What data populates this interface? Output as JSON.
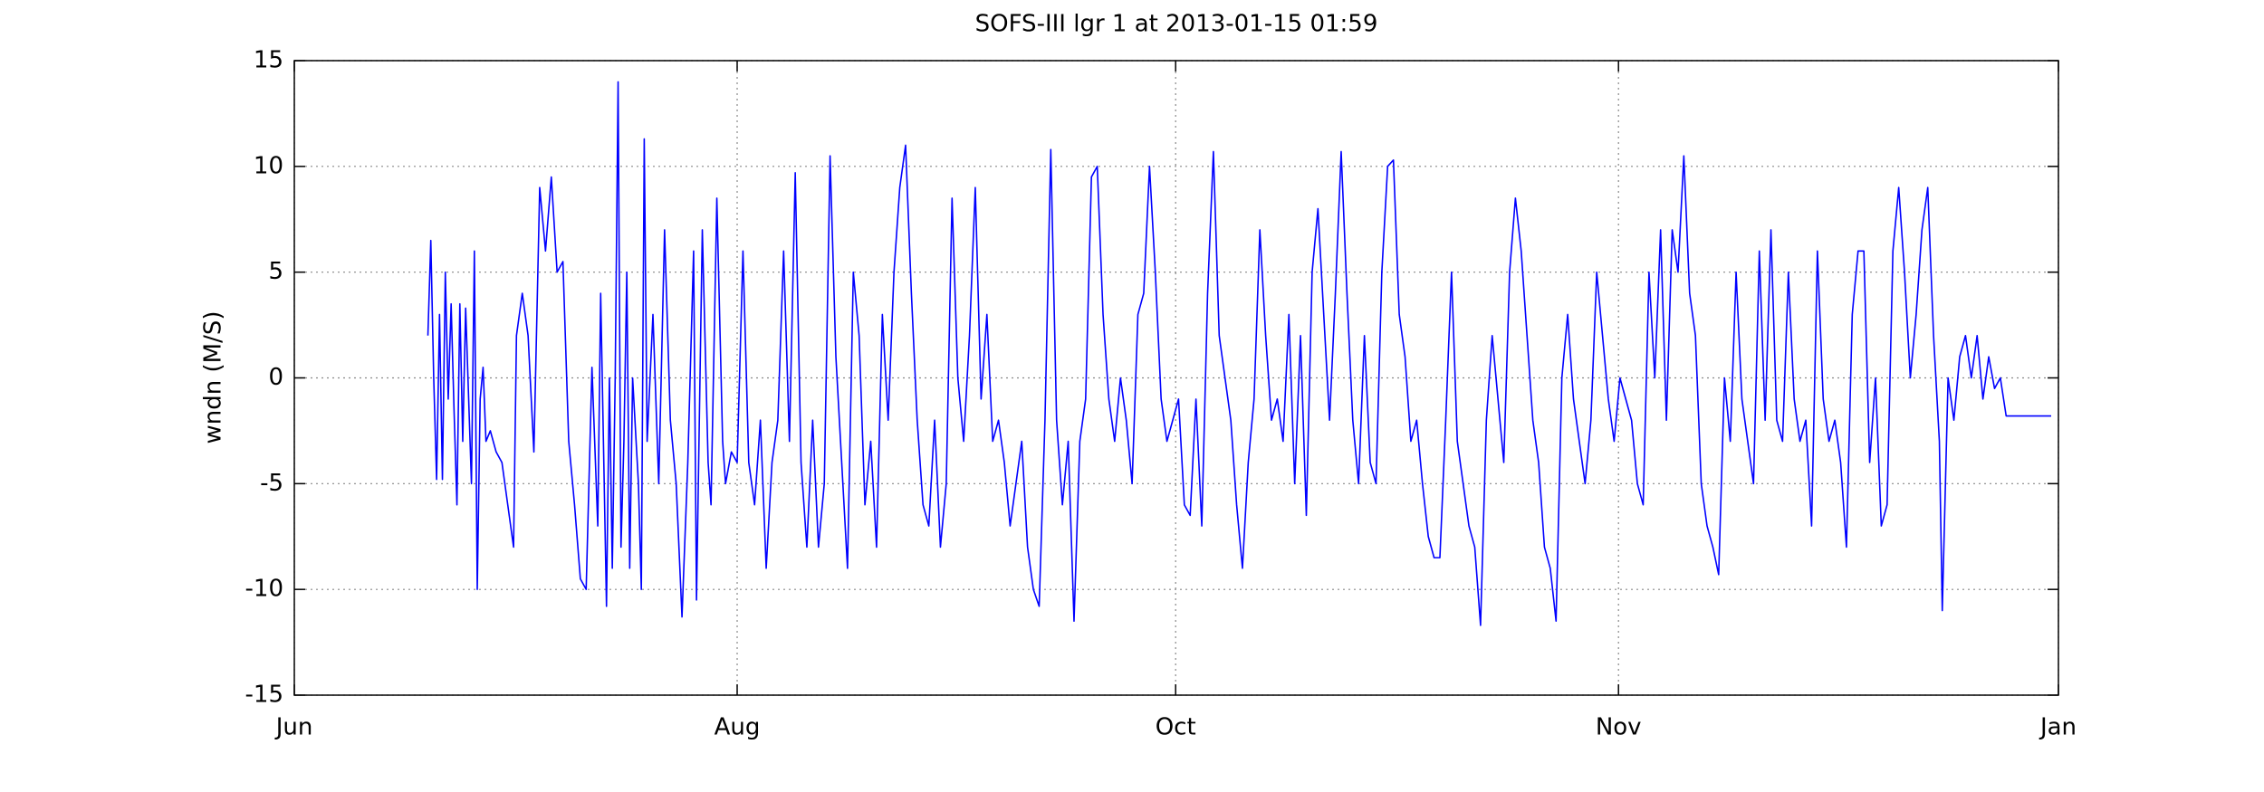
{
  "chart_data": {
    "type": "line",
    "title": "SOFS-III lgr 1 at 2013-01-15 01:59",
    "y_label": "wndn (M/S)",
    "color": "#0000ff",
    "grid": true,
    "xlim": [
      0,
      1215
    ],
    "xticks": [
      {
        "value": 0,
        "label": "Jun"
      },
      {
        "value": 305,
        "label": "Aug"
      },
      {
        "value": 607,
        "label": "Oct"
      },
      {
        "value": 912,
        "label": "Nov"
      },
      {
        "value": 1215,
        "label": "Jan"
      }
    ],
    "ylim": [
      -15,
      15
    ],
    "yticks": [
      -15,
      -10,
      -5,
      0,
      5,
      10,
      15
    ],
    "x": [
      92,
      94,
      96,
      98,
      100,
      102,
      104,
      106,
      108,
      110,
      112,
      114,
      116,
      118,
      122,
      124,
      126,
      128,
      130,
      132,
      135,
      139,
      143,
      147,
      151,
      153,
      157,
      161,
      165,
      169,
      173,
      177,
      181,
      185,
      189,
      193,
      197,
      201,
      205,
      209,
      211,
      215,
      217,
      219,
      221,
      223,
      225,
      227,
      229,
      231,
      233,
      237,
      239,
      241,
      243,
      247,
      251,
      255,
      259,
      263,
      267,
      271,
      275,
      277,
      281,
      285,
      287,
      291,
      295,
      297,
      301,
      305,
      309,
      313,
      317,
      321,
      325,
      329,
      333,
      337,
      341,
      345,
      349,
      353,
      357,
      361,
      365,
      369,
      373,
      377,
      381,
      385,
      389,
      393,
      397,
      401,
      405,
      409,
      413,
      417,
      421,
      425,
      429,
      433,
      437,
      441,
      445,
      449,
      453,
      457,
      461,
      465,
      469,
      473,
      477,
      481,
      485,
      489,
      493,
      497,
      501,
      505,
      509,
      513,
      517,
      521,
      525,
      529,
      533,
      537,
      541,
      545,
      549,
      553,
      557,
      561,
      565,
      569,
      573,
      577,
      581,
      585,
      589,
      593,
      597,
      601,
      605,
      609,
      613,
      617,
      621,
      625,
      629,
      633,
      637,
      641,
      645,
      649,
      653,
      657,
      661,
      665,
      669,
      673,
      677,
      681,
      685,
      689,
      693,
      697,
      701,
      705,
      709,
      713,
      717,
      721,
      725,
      729,
      733,
      737,
      741,
      745,
      749,
      753,
      757,
      761,
      765,
      769,
      773,
      777,
      781,
      785,
      789,
      793,
      797,
      801,
      805,
      809,
      813,
      817,
      821,
      825,
      829,
      833,
      837,
      841,
      845,
      849,
      853,
      857,
      861,
      865,
      869,
      873,
      877,
      881,
      885,
      889,
      893,
      897,
      901,
      905,
      909,
      913,
      917,
      921,
      925,
      929,
      933,
      937,
      941,
      945,
      949,
      953,
      957,
      961,
      965,
      969,
      973,
      977,
      981,
      985,
      989,
      993,
      997,
      1001,
      1005,
      1009,
      1013,
      1017,
      1021,
      1025,
      1029,
      1033,
      1037,
      1041,
      1045,
      1049,
      1053,
      1057,
      1061,
      1065,
      1069,
      1073,
      1077,
      1081,
      1085,
      1089,
      1093,
      1097,
      1101,
      1105,
      1109,
      1113,
      1117,
      1121,
      1125,
      1129,
      1133,
      1135,
      1139,
      1143,
      1147,
      1151,
      1155,
      1159,
      1163,
      1167,
      1171,
      1175,
      1179,
      1210
    ],
    "values": [
      2,
      6.5,
      0,
      -4.8,
      3,
      -4.8,
      5,
      -1,
      3.5,
      -1.5,
      -6,
      3.5,
      -3,
      3.3,
      -5,
      6,
      -10,
      -1,
      0.5,
      -3,
      -2.5,
      -3.5,
      -4,
      -6,
      -8,
      2,
      4,
      2,
      -3.5,
      9,
      6,
      9.5,
      5,
      5.5,
      -3,
      -6,
      -9.5,
      -10,
      0.5,
      -7,
      4,
      -10.8,
      0,
      -9,
      0,
      14,
      -8,
      -3,
      5,
      -9,
      0,
      -5,
      -10,
      11.3,
      -3,
      3,
      -5,
      7,
      -2,
      -5,
      -11.3,
      -4,
      6,
      -10.5,
      7,
      -4,
      -6,
      8.5,
      -3,
      -5,
      -3.5,
      -4,
      6,
      -4,
      -6,
      -2,
      -9,
      -4,
      -2,
      6,
      -3,
      9.7,
      -4,
      -8,
      -2,
      -8,
      -5,
      10.5,
      1,
      -4,
      -9,
      5,
      2,
      -6,
      -3,
      -8,
      3,
      -2,
      5,
      9,
      11,
      4,
      -2,
      -6,
      -7,
      -2,
      -8,
      -5,
      8.5,
      0,
      -3,
      2,
      9,
      -1,
      3,
      -3,
      -2,
      -4,
      -7,
      -5,
      -3,
      -8,
      -10,
      -10.8,
      -2,
      10.8,
      -2,
      -6,
      -3,
      -11.5,
      -3,
      -1,
      9.5,
      10,
      3,
      -1,
      -3,
      0,
      -2,
      -5,
      3,
      4,
      10,
      5,
      -1,
      -3,
      -2,
      -1,
      -6,
      -6.5,
      -1,
      -7,
      4,
      10.7,
      2,
      0,
      -2,
      -6,
      -9,
      -4,
      -1,
      7,
      2,
      -2,
      -1,
      -3,
      3,
      -5,
      2,
      -6.5,
      5,
      8,
      3,
      -2,
      4,
      10.7,
      4,
      -2,
      -5,
      2,
      -4,
      -5,
      5,
      10,
      10.3,
      3,
      1,
      -3,
      -2,
      -5,
      -7.5,
      -8.5,
      -8.5,
      -2,
      5,
      -3,
      -5,
      -7,
      -8,
      -11.7,
      -2,
      2,
      -1,
      -4,
      5,
      8.5,
      6,
      2,
      -2,
      -4,
      -8,
      -9,
      -11.5,
      0,
      3,
      -1,
      -3,
      -5,
      -2,
      5,
      2,
      -1,
      -3,
      0,
      -1,
      -2,
      -5,
      -6,
      5,
      0,
      7,
      -2,
      7,
      5,
      10.5,
      4,
      2,
      -5,
      -7,
      -8,
      -9.3,
      0,
      -3,
      5,
      -1,
      -3,
      -5,
      6,
      -2,
      7,
      -2,
      -3,
      5,
      -1,
      -3,
      -2,
      -7,
      6,
      -1,
      -3,
      -2,
      -4,
      -8,
      3,
      6,
      6,
      -4,
      0,
      -7,
      -6,
      6,
      9,
      5,
      0,
      3,
      7,
      9,
      2,
      -3,
      -11,
      0,
      -2,
      1,
      2,
      0,
      2,
      -1,
      1,
      -0.5,
      0,
      -1.8,
      -1.8
    ]
  }
}
